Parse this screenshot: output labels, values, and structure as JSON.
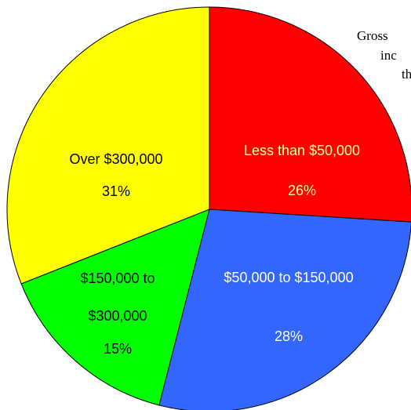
{
  "chart_data": {
    "type": "pie",
    "title_lines": [
      "Gross",
      "inc",
      "th"
    ],
    "categories": [
      [
        "Less than $50,000"
      ],
      [
        "$50,000 to $150,000"
      ],
      [
        "$150,000 to",
        "$300,000"
      ],
      [
        "Over $300,000"
      ]
    ],
    "values": [
      26,
      28,
      15,
      31
    ],
    "value_labels": [
      "26%",
      "28%",
      "15%",
      "31%"
    ],
    "colors": [
      "#ff0000",
      "#3366ff",
      "#00ff00",
      "#ffff00"
    ],
    "label_colors": [
      "#ffff99",
      "#ffffff",
      "#000000",
      "#000000"
    ]
  }
}
